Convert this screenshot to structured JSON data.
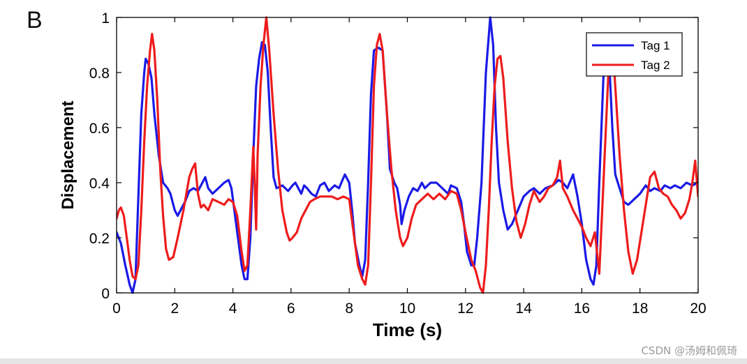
{
  "panel_label": "B",
  "watermark": "CSDN @汤姆和佩琦",
  "colors": {
    "tag1": "#1a1ae6",
    "tag2": "#ee1c1c",
    "axis": "#000000"
  },
  "chart_data": {
    "type": "line",
    "title": "",
    "xlabel": "Time (s)",
    "ylabel": "Displacement",
    "xlim": [
      0,
      20
    ],
    "ylim": [
      0,
      1
    ],
    "xticks": [
      0,
      2,
      4,
      6,
      8,
      10,
      12,
      14,
      16,
      18,
      20
    ],
    "yticks": [
      0,
      0.2,
      0.4,
      0.6,
      0.8,
      1
    ],
    "ytick_labels": [
      "0",
      "0.2",
      "0.4",
      "0.6",
      "0.8",
      "1"
    ],
    "grid": false,
    "legend_position": "top-right",
    "series": [
      {
        "name": "Tag 1",
        "color": "#1a1ae6",
        "points": [
          [
            0,
            0.22
          ],
          [
            0.15,
            0.18
          ],
          [
            0.3,
            0.1
          ],
          [
            0.45,
            0.03
          ],
          [
            0.55,
            0.0
          ],
          [
            0.65,
            0.05
          ],
          [
            0.75,
            0.35
          ],
          [
            0.85,
            0.65
          ],
          [
            0.95,
            0.8
          ],
          [
            1.0,
            0.85
          ],
          [
            1.1,
            0.83
          ],
          [
            1.2,
            0.78
          ],
          [
            1.3,
            0.65
          ],
          [
            1.45,
            0.5
          ],
          [
            1.6,
            0.4
          ],
          [
            1.75,
            0.38
          ],
          [
            1.85,
            0.36
          ],
          [
            2.0,
            0.3
          ],
          [
            2.1,
            0.28
          ],
          [
            2.2,
            0.3
          ],
          [
            2.35,
            0.33
          ],
          [
            2.5,
            0.37
          ],
          [
            2.65,
            0.38
          ],
          [
            2.8,
            0.37
          ],
          [
            2.95,
            0.4
          ],
          [
            3.05,
            0.42
          ],
          [
            3.15,
            0.38
          ],
          [
            3.3,
            0.36
          ],
          [
            3.5,
            0.38
          ],
          [
            3.7,
            0.4
          ],
          [
            3.85,
            0.41
          ],
          [
            3.95,
            0.38
          ],
          [
            4.05,
            0.3
          ],
          [
            4.15,
            0.22
          ],
          [
            4.3,
            0.1
          ],
          [
            4.4,
            0.05
          ],
          [
            4.5,
            0.05
          ],
          [
            4.6,
            0.2
          ],
          [
            4.7,
            0.5
          ],
          [
            4.8,
            0.75
          ],
          [
            4.9,
            0.85
          ],
          [
            5.0,
            0.91
          ],
          [
            5.1,
            0.9
          ],
          [
            5.2,
            0.8
          ],
          [
            5.3,
            0.6
          ],
          [
            5.4,
            0.42
          ],
          [
            5.5,
            0.38
          ],
          [
            5.7,
            0.39
          ],
          [
            5.9,
            0.37
          ],
          [
            6.05,
            0.39
          ],
          [
            6.15,
            0.4
          ],
          [
            6.25,
            0.38
          ],
          [
            6.35,
            0.36
          ],
          [
            6.45,
            0.39
          ],
          [
            6.55,
            0.38
          ],
          [
            6.7,
            0.36
          ],
          [
            6.85,
            0.35
          ],
          [
            7.0,
            0.39
          ],
          [
            7.15,
            0.4
          ],
          [
            7.3,
            0.37
          ],
          [
            7.5,
            0.39
          ],
          [
            7.65,
            0.38
          ],
          [
            7.85,
            0.43
          ],
          [
            8.0,
            0.4
          ],
          [
            8.1,
            0.3
          ],
          [
            8.2,
            0.18
          ],
          [
            8.35,
            0.1
          ],
          [
            8.45,
            0.06
          ],
          [
            8.55,
            0.12
          ],
          [
            8.65,
            0.4
          ],
          [
            8.75,
            0.72
          ],
          [
            8.85,
            0.88
          ],
          [
            9.0,
            0.89
          ],
          [
            9.15,
            0.88
          ],
          [
            9.3,
            0.65
          ],
          [
            9.4,
            0.45
          ],
          [
            9.55,
            0.4
          ],
          [
            9.65,
            0.38
          ],
          [
            9.75,
            0.32
          ],
          [
            9.8,
            0.25
          ],
          [
            9.9,
            0.3
          ],
          [
            10.05,
            0.35
          ],
          [
            10.2,
            0.38
          ],
          [
            10.35,
            0.37
          ],
          [
            10.5,
            0.4
          ],
          [
            10.6,
            0.38
          ],
          [
            10.8,
            0.4
          ],
          [
            11.0,
            0.4
          ],
          [
            11.2,
            0.38
          ],
          [
            11.4,
            0.36
          ],
          [
            11.5,
            0.39
          ],
          [
            11.7,
            0.38
          ],
          [
            11.85,
            0.33
          ],
          [
            11.95,
            0.25
          ],
          [
            12.05,
            0.15
          ],
          [
            12.2,
            0.1
          ],
          [
            12.3,
            0.1
          ],
          [
            12.4,
            0.2
          ],
          [
            12.55,
            0.4
          ],
          [
            12.7,
            0.8
          ],
          [
            12.85,
            1.0
          ],
          [
            12.95,
            0.9
          ],
          [
            13.05,
            0.6
          ],
          [
            13.15,
            0.4
          ],
          [
            13.3,
            0.3
          ],
          [
            13.45,
            0.23
          ],
          [
            13.6,
            0.25
          ],
          [
            13.8,
            0.3
          ],
          [
            14.0,
            0.35
          ],
          [
            14.2,
            0.37
          ],
          [
            14.35,
            0.38
          ],
          [
            14.55,
            0.36
          ],
          [
            14.75,
            0.38
          ],
          [
            15.0,
            0.39
          ],
          [
            15.2,
            0.41
          ],
          [
            15.35,
            0.4
          ],
          [
            15.5,
            0.38
          ],
          [
            15.7,
            0.43
          ],
          [
            15.85,
            0.35
          ],
          [
            16.0,
            0.25
          ],
          [
            16.15,
            0.12
          ],
          [
            16.3,
            0.05
          ],
          [
            16.4,
            0.03
          ],
          [
            16.5,
            0.1
          ],
          [
            16.6,
            0.4
          ],
          [
            16.75,
            0.8
          ],
          [
            16.85,
            0.88
          ],
          [
            16.95,
            0.82
          ],
          [
            17.05,
            0.6
          ],
          [
            17.15,
            0.43
          ],
          [
            17.3,
            0.38
          ],
          [
            17.45,
            0.33
          ],
          [
            17.6,
            0.32
          ],
          [
            17.8,
            0.34
          ],
          [
            18.0,
            0.36
          ],
          [
            18.2,
            0.39
          ],
          [
            18.35,
            0.37
          ],
          [
            18.5,
            0.38
          ],
          [
            18.7,
            0.37
          ],
          [
            18.85,
            0.39
          ],
          [
            19.05,
            0.38
          ],
          [
            19.2,
            0.39
          ],
          [
            19.4,
            0.38
          ],
          [
            19.6,
            0.4
          ],
          [
            19.8,
            0.39
          ],
          [
            20.0,
            0.4
          ]
        ]
      },
      {
        "name": "Tag 2",
        "color": "#ee1c1c",
        "points": [
          [
            0,
            0.27
          ],
          [
            0.08,
            0.3
          ],
          [
            0.15,
            0.31
          ],
          [
            0.25,
            0.28
          ],
          [
            0.35,
            0.2
          ],
          [
            0.45,
            0.12
          ],
          [
            0.55,
            0.06
          ],
          [
            0.65,
            0.05
          ],
          [
            0.75,
            0.1
          ],
          [
            0.85,
            0.3
          ],
          [
            0.95,
            0.55
          ],
          [
            1.05,
            0.75
          ],
          [
            1.15,
            0.88
          ],
          [
            1.22,
            0.94
          ],
          [
            1.3,
            0.88
          ],
          [
            1.4,
            0.7
          ],
          [
            1.5,
            0.45
          ],
          [
            1.6,
            0.28
          ],
          [
            1.7,
            0.16
          ],
          [
            1.8,
            0.12
          ],
          [
            1.95,
            0.13
          ],
          [
            2.1,
            0.2
          ],
          [
            2.3,
            0.3
          ],
          [
            2.5,
            0.42
          ],
          [
            2.6,
            0.45
          ],
          [
            2.7,
            0.47
          ],
          [
            2.8,
            0.36
          ],
          [
            2.9,
            0.31
          ],
          [
            3.0,
            0.32
          ],
          [
            3.15,
            0.3
          ],
          [
            3.3,
            0.34
          ],
          [
            3.5,
            0.33
          ],
          [
            3.7,
            0.32
          ],
          [
            3.85,
            0.34
          ],
          [
            4.0,
            0.33
          ],
          [
            4.15,
            0.28
          ],
          [
            4.3,
            0.15
          ],
          [
            4.4,
            0.08
          ],
          [
            4.5,
            0.1
          ],
          [
            4.6,
            0.3
          ],
          [
            4.7,
            0.53
          ],
          [
            4.75,
            0.4
          ],
          [
            4.8,
            0.23
          ],
          [
            4.85,
            0.5
          ],
          [
            4.95,
            0.75
          ],
          [
            5.05,
            0.9
          ],
          [
            5.15,
            1.0
          ],
          [
            5.25,
            0.88
          ],
          [
            5.4,
            0.65
          ],
          [
            5.55,
            0.45
          ],
          [
            5.7,
            0.3
          ],
          [
            5.85,
            0.22
          ],
          [
            5.95,
            0.19
          ],
          [
            6.05,
            0.2
          ],
          [
            6.2,
            0.22
          ],
          [
            6.35,
            0.27
          ],
          [
            6.5,
            0.3
          ],
          [
            6.65,
            0.33
          ],
          [
            6.8,
            0.34
          ],
          [
            7.0,
            0.35
          ],
          [
            7.2,
            0.35
          ],
          [
            7.4,
            0.35
          ],
          [
            7.6,
            0.34
          ],
          [
            7.8,
            0.35
          ],
          [
            8.0,
            0.34
          ],
          [
            8.15,
            0.22
          ],
          [
            8.3,
            0.1
          ],
          [
            8.45,
            0.05
          ],
          [
            8.55,
            0.03
          ],
          [
            8.65,
            0.1
          ],
          [
            8.75,
            0.4
          ],
          [
            8.85,
            0.75
          ],
          [
            8.95,
            0.9
          ],
          [
            9.05,
            0.94
          ],
          [
            9.15,
            0.88
          ],
          [
            9.3,
            0.65
          ],
          [
            9.45,
            0.45
          ],
          [
            9.6,
            0.3
          ],
          [
            9.75,
            0.2
          ],
          [
            9.85,
            0.17
          ],
          [
            10.0,
            0.2
          ],
          [
            10.15,
            0.27
          ],
          [
            10.3,
            0.32
          ],
          [
            10.5,
            0.34
          ],
          [
            10.7,
            0.36
          ],
          [
            10.9,
            0.34
          ],
          [
            11.1,
            0.36
          ],
          [
            11.3,
            0.34
          ],
          [
            11.5,
            0.37
          ],
          [
            11.7,
            0.36
          ],
          [
            11.85,
            0.3
          ],
          [
            12.0,
            0.22
          ],
          [
            12.2,
            0.12
          ],
          [
            12.35,
            0.08
          ],
          [
            12.5,
            0.02
          ],
          [
            12.6,
            0.0
          ],
          [
            12.7,
            0.1
          ],
          [
            12.8,
            0.3
          ],
          [
            12.9,
            0.55
          ],
          [
            13.0,
            0.75
          ],
          [
            13.1,
            0.85
          ],
          [
            13.2,
            0.86
          ],
          [
            13.3,
            0.78
          ],
          [
            13.45,
            0.55
          ],
          [
            13.6,
            0.38
          ],
          [
            13.75,
            0.26
          ],
          [
            13.9,
            0.2
          ],
          [
            14.05,
            0.25
          ],
          [
            14.2,
            0.32
          ],
          [
            14.35,
            0.37
          ],
          [
            14.55,
            0.33
          ],
          [
            14.7,
            0.35
          ],
          [
            14.85,
            0.38
          ],
          [
            15.0,
            0.39
          ],
          [
            15.15,
            0.42
          ],
          [
            15.25,
            0.48
          ],
          [
            15.35,
            0.38
          ],
          [
            15.5,
            0.35
          ],
          [
            15.7,
            0.3
          ],
          [
            15.85,
            0.27
          ],
          [
            16.0,
            0.24
          ],
          [
            16.15,
            0.2
          ],
          [
            16.3,
            0.17
          ],
          [
            16.45,
            0.22
          ],
          [
            16.6,
            0.07
          ],
          [
            16.7,
            0.3
          ],
          [
            16.85,
            0.65
          ],
          [
            16.95,
            0.88
          ],
          [
            17.05,
            0.92
          ],
          [
            17.15,
            0.75
          ],
          [
            17.3,
            0.5
          ],
          [
            17.45,
            0.3
          ],
          [
            17.6,
            0.15
          ],
          [
            17.75,
            0.07
          ],
          [
            17.9,
            0.12
          ],
          [
            18.05,
            0.22
          ],
          [
            18.2,
            0.32
          ],
          [
            18.35,
            0.42
          ],
          [
            18.5,
            0.44
          ],
          [
            18.65,
            0.38
          ],
          [
            18.8,
            0.36
          ],
          [
            18.95,
            0.35
          ],
          [
            19.1,
            0.32
          ],
          [
            19.25,
            0.3
          ],
          [
            19.4,
            0.27
          ],
          [
            19.55,
            0.29
          ],
          [
            19.7,
            0.34
          ],
          [
            19.8,
            0.4
          ],
          [
            19.9,
            0.48
          ],
          [
            20.0,
            0.35
          ]
        ]
      }
    ]
  }
}
